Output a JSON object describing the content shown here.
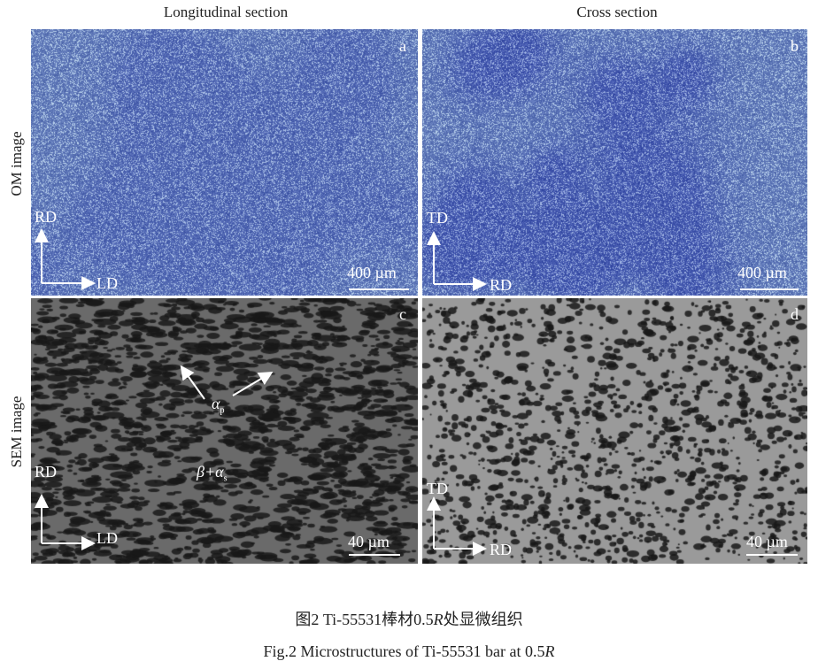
{
  "columns": [
    "Longitudinal section",
    "Cross section"
  ],
  "rows": [
    "OM image",
    "SEM image"
  ],
  "panels": {
    "a": {
      "letter": "a",
      "axis_up": "RD",
      "axis_right": "LD",
      "scale": "400 µm",
      "type": "OM",
      "color": "#5a78b8"
    },
    "b": {
      "letter": "b",
      "axis_up": "TD",
      "axis_right": "RD",
      "scale": "400 µm",
      "type": "OM",
      "color": "#5f7ab8"
    },
    "c": {
      "letter": "c",
      "axis_up": "RD",
      "axis_right": "LD",
      "scale": "40 µm",
      "type": "SEM",
      "color": "#6a6a6a",
      "annotations": {
        "alpha_p": "α",
        "alpha_p_sub": "p",
        "beta_alpha_s": "β+α",
        "beta_alpha_s_sub": "s"
      }
    },
    "d": {
      "letter": "d",
      "axis_up": "TD",
      "axis_right": "RD",
      "scale": "40 µm",
      "type": "SEM",
      "color": "#9a9a9a"
    }
  },
  "caption": {
    "cn_prefix": "图2  Ti-55531棒材0.5",
    "cn_italic": "R",
    "cn_suffix": "处显微组织",
    "en_prefix": "Fig.2  Microstructures of Ti-55531 bar at 0.5",
    "en_italic": "R"
  }
}
